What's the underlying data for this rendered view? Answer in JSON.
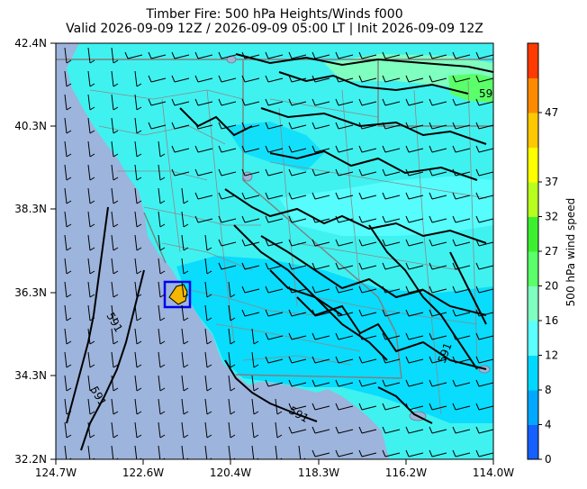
{
  "title": {
    "line1": "Timber Fire: 500 hPa Heights/Winds f000",
    "line2": "Valid 2026-09-09 12Z / 2026-09-09 05:00 LT | Init 2026-09-09 12Z"
  },
  "map": {
    "lat_ticks": [
      "42.4N",
      "40.3N",
      "38.3N",
      "36.3N",
      "34.3N",
      "32.2N"
    ],
    "lon_ticks": [
      "124.7W",
      "122.6W",
      "120.4W",
      "118.3W",
      "116.2W",
      "114.0W"
    ],
    "ocean_color": "#9db4dc",
    "land_color": "#3ff2f0",
    "contour_labels": [
      "591",
      "591",
      "591",
      "591",
      "591"
    ],
    "fire_marker": {
      "lat": 36.3,
      "lon": -121.5,
      "color": "#f5b800"
    }
  },
  "colorbar": {
    "label": "500 hPa wind speed",
    "ticks": [
      "0",
      "4",
      "8",
      "12",
      "16",
      "20",
      "27",
      "32",
      "37",
      "47"
    ],
    "colors": [
      "#1560ff",
      "#00a8ff",
      "#00d8ff",
      "#5cffff",
      "#7fffc0",
      "#5aff6a",
      "#3cf030",
      "#b8ff20",
      "#ffff00",
      "#ffc800",
      "#ff8a00",
      "#ff3a00"
    ]
  }
}
